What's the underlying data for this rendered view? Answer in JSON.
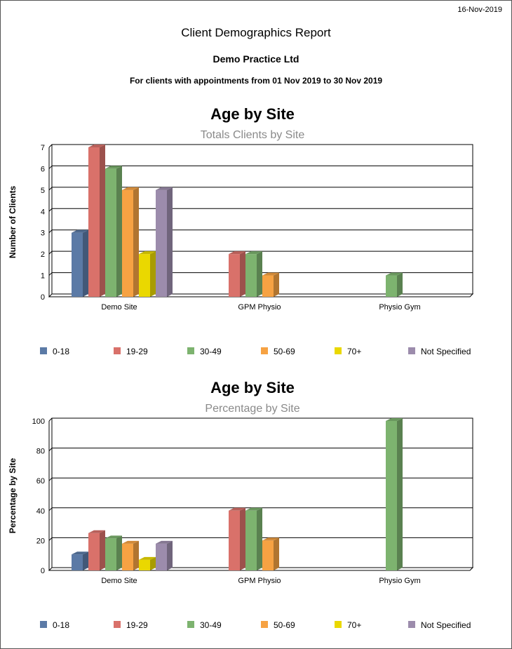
{
  "report": {
    "date": "16-Nov-2019",
    "title": "Client Demographics Report",
    "practice": "Demo Practice Ltd",
    "range": "For clients with appointments from 01 Nov 2019 to 30 Nov 2019"
  },
  "chart_data": [
    {
      "type": "bar",
      "title": "Age by Site",
      "subtitle": "Totals Clients by Site",
      "xlabel": "",
      "ylabel": "Number of Clients",
      "ylim": [
        0,
        7
      ],
      "yticks": [
        0,
        1,
        2,
        3,
        4,
        5,
        6,
        7
      ],
      "grid": true,
      "legend": "bottom",
      "categories": [
        "Demo Site",
        "GPM Physio",
        "Physio Gym"
      ],
      "series": [
        {
          "name": "0-18",
          "color": "#5b7aa6",
          "values": [
            3,
            0,
            0
          ]
        },
        {
          "name": "19-29",
          "color": "#d9716a",
          "values": [
            7,
            2,
            0
          ]
        },
        {
          "name": "30-49",
          "color": "#7db36f",
          "values": [
            6,
            2,
            1
          ]
        },
        {
          "name": "50-69",
          "color": "#f6a243",
          "values": [
            5,
            1,
            0
          ]
        },
        {
          "name": "70+",
          "color": "#ead800",
          "values": [
            2,
            0,
            0
          ]
        },
        {
          "name": "Not Specified",
          "color": "#9c8cac",
          "values": [
            5,
            0,
            0
          ]
        }
      ]
    },
    {
      "type": "bar",
      "title": "Age by Site",
      "subtitle": "Percentage by Site",
      "xlabel": "",
      "ylabel": "Percentage by Site",
      "ylim": [
        0,
        100
      ],
      "yticks": [
        0,
        20,
        40,
        60,
        80,
        100
      ],
      "grid": true,
      "legend": "bottom",
      "categories": [
        "Demo Site",
        "GPM Physio",
        "Physio Gym"
      ],
      "series": [
        {
          "name": "0-18",
          "color": "#5b7aa6",
          "values": [
            10.7,
            0,
            0
          ]
        },
        {
          "name": "19-29",
          "color": "#d9716a",
          "values": [
            25,
            40,
            0
          ]
        },
        {
          "name": "30-49",
          "color": "#7db36f",
          "values": [
            21.4,
            40,
            100
          ]
        },
        {
          "name": "50-69",
          "color": "#f6a243",
          "values": [
            17.9,
            20,
            0
          ]
        },
        {
          "name": "70+",
          "color": "#ead800",
          "values": [
            7.1,
            0,
            0
          ]
        },
        {
          "name": "Not Specified",
          "color": "#9c8cac",
          "values": [
            17.9,
            0,
            0
          ]
        }
      ]
    }
  ]
}
